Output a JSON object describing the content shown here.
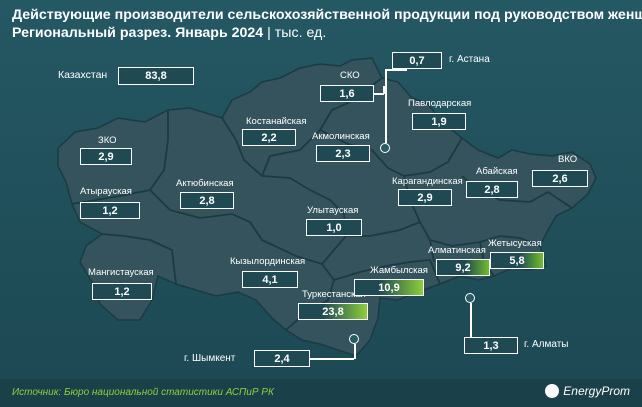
{
  "header": {
    "title_line1": "Действующие производители сельскохозяйственной продукции под руководством женщин.",
    "title_line2": "Региональный разрез. Январь 2024",
    "unit": "тыс. ед."
  },
  "map": {
    "country_label": "Казахстан",
    "country_value": "83,8",
    "regions": [
      {
        "name": "ЗКО",
        "value": "2,9"
      },
      {
        "name": "Атырауская",
        "value": "1,2"
      },
      {
        "name": "Мангистауская",
        "value": "1,2"
      },
      {
        "name": "Актюбинская",
        "value": "2,8"
      },
      {
        "name": "Костанайская",
        "value": "2,2"
      },
      {
        "name": "СКО",
        "value": "1,6"
      },
      {
        "name": "Акмолинская",
        "value": "2,3"
      },
      {
        "name": "г. Астана",
        "value": "0,7"
      },
      {
        "name": "Павлодарская",
        "value": "1,9"
      },
      {
        "name": "ВКО",
        "value": "2,6"
      },
      {
        "name": "Абайская",
        "value": "2,8"
      },
      {
        "name": "Карагандинская",
        "value": "2,9"
      },
      {
        "name": "Улытауская",
        "value": "1,0"
      },
      {
        "name": "Кызылординская",
        "value": "4,1"
      },
      {
        "name": "Туркестанская",
        "value": "23,8"
      },
      {
        "name": "Жамбылская",
        "value": "10,9"
      },
      {
        "name": "Алматинская",
        "value": "9,2"
      },
      {
        "name": "Жетысуская",
        "value": "5,8"
      },
      {
        "name": "г. Алматы",
        "value": "1,3"
      },
      {
        "name": "г. Шымкент",
        "value": "2,4"
      }
    ],
    "colors": {
      "background": "#1e4d57",
      "land": "#34535d",
      "border": "#1b3b43",
      "highlight": "#8ccf3a"
    }
  },
  "footer": {
    "source": "Источник: Бюро национальной статистики АСПиР РК",
    "logo": "EnergyProm"
  }
}
